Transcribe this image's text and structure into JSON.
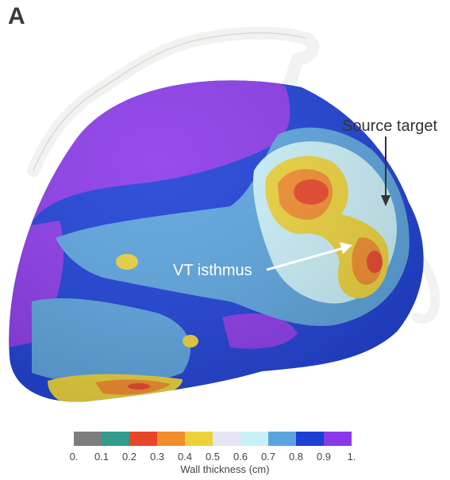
{
  "panel_label": "A",
  "annotations": {
    "source_target": "Source target",
    "vt_isthmus": "VT isthmus"
  },
  "colorbar": {
    "title": "Wall thickness (cm)",
    "ticks": [
      "0.",
      "0.1",
      "0.2",
      "0.3",
      "0.4",
      "0.5",
      "0.6",
      "0.7",
      "0.8",
      "0.9",
      "1."
    ],
    "colors": [
      "#7d7d7d",
      "#2f9c8e",
      "#e8462a",
      "#f28d2e",
      "#ecd23a",
      "#e6e3f2",
      "#c9f0f8",
      "#5aa3de",
      "#1c3fd6",
      "#8a38e8"
    ]
  }
}
